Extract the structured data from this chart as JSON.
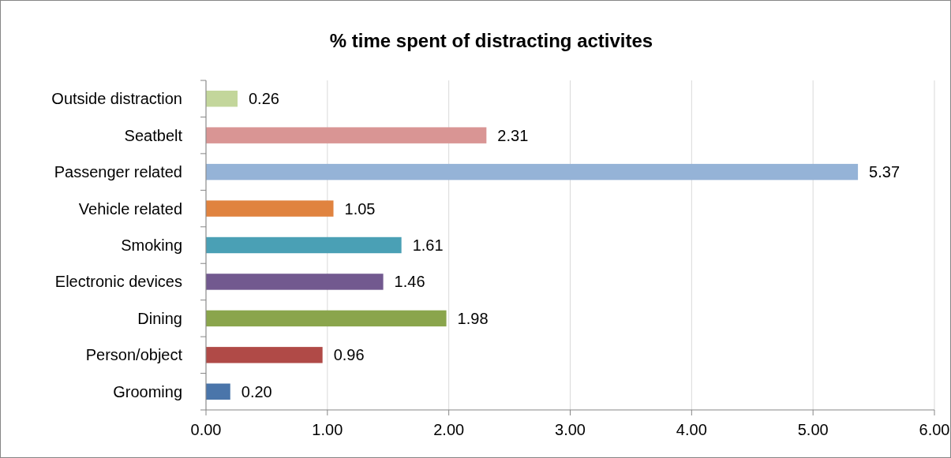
{
  "chart_data": {
    "type": "bar",
    "orientation": "horizontal",
    "title": "% time spent of distracting activites",
    "categories": [
      "Outside distraction",
      "Seatbelt",
      "Passenger related",
      "Vehicle related",
      "Smoking",
      "Electronic devices",
      "Dining",
      "Person/object",
      "Grooming"
    ],
    "values": [
      0.26,
      2.31,
      5.37,
      1.05,
      1.61,
      1.46,
      1.98,
      0.96,
      0.2
    ],
    "value_labels": [
      "0.26",
      "2.31",
      "5.37",
      "1.05",
      "1.61",
      "1.46",
      "1.98",
      "0.96",
      "0.20"
    ],
    "colors": [
      "#c3d69b",
      "#d99594",
      "#95b3d7",
      "#e0833f",
      "#4aa0b5",
      "#72598f",
      "#8aa54c",
      "#b04a47",
      "#4a75aa"
    ],
    "xlim": [
      0,
      6
    ],
    "xticks": [
      {
        "value": 0,
        "label": "0.00"
      },
      {
        "value": 1,
        "label": "1.00"
      },
      {
        "value": 2,
        "label": "2.00"
      },
      {
        "value": 3,
        "label": "3.00"
      },
      {
        "value": 4,
        "label": "4.00"
      },
      {
        "value": 5,
        "label": "5.00"
      },
      {
        "value": 6,
        "label": "6.00"
      }
    ],
    "grid": "x"
  }
}
